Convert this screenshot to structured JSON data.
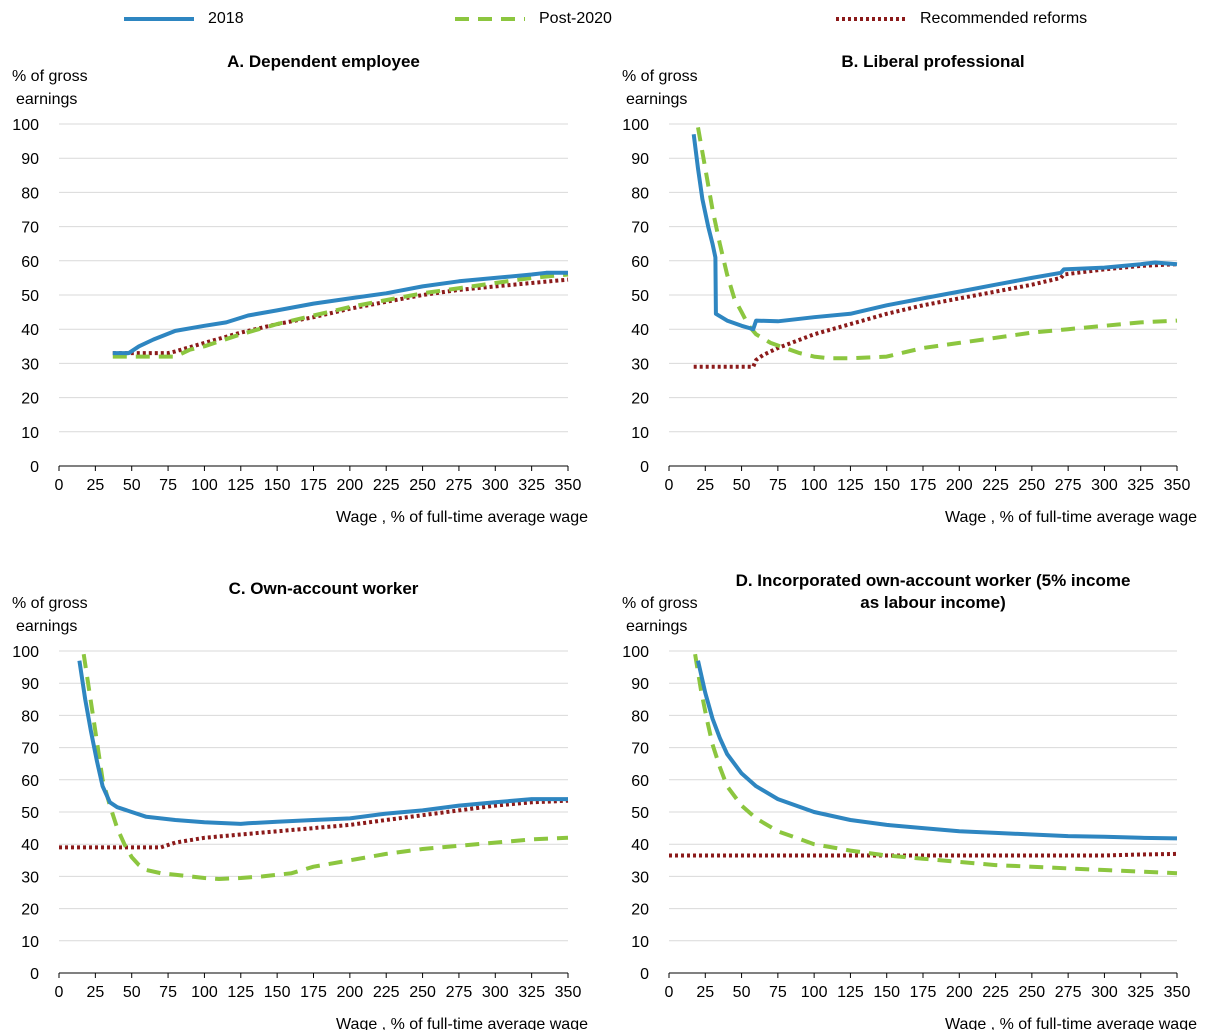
{
  "legend": [
    {
      "name": "2018",
      "color": "#2E86C1",
      "dash": "solid"
    },
    {
      "name": "Post-2020",
      "color": "#8CC63F",
      "dash": "dashed"
    },
    {
      "name": "Recommended reforms",
      "color": "#8B1A1A",
      "dash": "dotted"
    }
  ],
  "chart_data": [
    {
      "type": "line",
      "title": "A. Dependent employee",
      "ylabel": "% of gross earnings",
      "xlabel": "Wage , % of full-time average wage",
      "xlim": [
        0,
        350
      ],
      "ylim": [
        0,
        100
      ],
      "xticks": [
        0,
        25,
        50,
        75,
        100,
        125,
        150,
        175,
        200,
        225,
        250,
        275,
        300,
        325,
        350
      ],
      "yticks": [
        0,
        10,
        20,
        30,
        40,
        50,
        60,
        70,
        80,
        90,
        100
      ],
      "grid": "horizontal",
      "series": [
        {
          "name": "2018",
          "points": [
            [
              37,
              33
            ],
            [
              48,
              33
            ],
            [
              55,
              35
            ],
            [
              65,
              37
            ],
            [
              80,
              39.5
            ],
            [
              100,
              41
            ],
            [
              115,
              42
            ],
            [
              130,
              44
            ],
            [
              150,
              45.5
            ],
            [
              175,
              47.5
            ],
            [
              200,
              49
            ],
            [
              225,
              50.5
            ],
            [
              250,
              52.5
            ],
            [
              275,
              54
            ],
            [
              300,
              55
            ],
            [
              325,
              56
            ],
            [
              335,
              56.5
            ],
            [
              350,
              56.5
            ]
          ]
        },
        {
          "name": "Post-2020",
          "points": [
            [
              37,
              32
            ],
            [
              45,
              32
            ],
            [
              55,
              32
            ],
            [
              80,
              32
            ],
            [
              90,
              34
            ],
            [
              100,
              35
            ],
            [
              125,
              38.5
            ],
            [
              150,
              41.5
            ],
            [
              175,
              44
            ],
            [
              200,
              46.5
            ],
            [
              225,
              48.5
            ],
            [
              250,
              50.5
            ],
            [
              275,
              52
            ],
            [
              300,
              53.5
            ],
            [
              325,
              55
            ],
            [
              350,
              56
            ]
          ]
        },
        {
          "name": "Recommended reforms",
          "points": [
            [
              37,
              33
            ],
            [
              50,
              33
            ],
            [
              75,
              33
            ],
            [
              80,
              33.5
            ],
            [
              100,
              36
            ],
            [
              125,
              39
            ],
            [
              150,
              41.5
            ],
            [
              175,
              43.5
            ],
            [
              200,
              46
            ],
            [
              225,
              48
            ],
            [
              250,
              50
            ],
            [
              275,
              51.5
            ],
            [
              300,
              52.5
            ],
            [
              325,
              53.5
            ],
            [
              350,
              54.5
            ]
          ]
        }
      ]
    },
    {
      "type": "line",
      "title": "B. Liberal professional",
      "ylabel": "% of gross earnings",
      "xlabel": "Wage , % of full-time average wage",
      "xlim": [
        0,
        350
      ],
      "ylim": [
        0,
        100
      ],
      "xticks": [
        0,
        25,
        50,
        75,
        100,
        125,
        150,
        175,
        200,
        225,
        250,
        275,
        300,
        325,
        350
      ],
      "yticks": [
        0,
        10,
        20,
        30,
        40,
        50,
        60,
        70,
        80,
        90,
        100
      ],
      "grid": "horizontal",
      "series": [
        {
          "name": "2018",
          "points": [
            [
              17,
              97
            ],
            [
              20,
              87
            ],
            [
              23,
              78
            ],
            [
              27,
              70
            ],
            [
              30,
              65
            ],
            [
              32,
              61
            ],
            [
              32.3,
              44.5
            ],
            [
              40,
              42.5
            ],
            [
              50,
              41
            ],
            [
              58,
              40
            ],
            [
              60,
              42.5
            ],
            [
              75,
              42.3
            ],
            [
              100,
              43.5
            ],
            [
              125,
              44.5
            ],
            [
              150,
              47
            ],
            [
              175,
              49
            ],
            [
              200,
              51
            ],
            [
              225,
              53
            ],
            [
              250,
              55
            ],
            [
              270,
              56.5
            ],
            [
              272,
              57.5
            ],
            [
              300,
              58
            ],
            [
              325,
              59
            ],
            [
              335,
              59.5
            ],
            [
              350,
              59
            ]
          ]
        },
        {
          "name": "Post-2020",
          "points": [
            [
              20,
              99
            ],
            [
              25,
              87
            ],
            [
              30,
              75
            ],
            [
              35,
              65
            ],
            [
              40,
              56
            ],
            [
              45,
              49
            ],
            [
              50,
              45
            ],
            [
              55,
              41
            ],
            [
              60,
              38.5
            ],
            [
              70,
              36
            ],
            [
              80,
              34.5
            ],
            [
              90,
              33
            ],
            [
              100,
              32
            ],
            [
              110,
              31.5
            ],
            [
              125,
              31.5
            ],
            [
              150,
              32
            ],
            [
              160,
              33
            ],
            [
              175,
              34.5
            ],
            [
              200,
              36
            ],
            [
              225,
              37.5
            ],
            [
              250,
              39
            ],
            [
              275,
              40
            ],
            [
              300,
              41
            ],
            [
              325,
              42
            ],
            [
              350,
              42.5
            ]
          ]
        },
        {
          "name": "Recommended reforms",
          "points": [
            [
              17,
              29
            ],
            [
              30,
              29
            ],
            [
              45,
              29
            ],
            [
              55,
              29
            ],
            [
              58,
              29
            ],
            [
              60,
              31
            ],
            [
              65,
              32.5
            ],
            [
              75,
              34.5
            ],
            [
              100,
              38.5
            ],
            [
              125,
              41.5
            ],
            [
              150,
              44.5
            ],
            [
              175,
              47
            ],
            [
              200,
              49
            ],
            [
              225,
              51
            ],
            [
              250,
              53
            ],
            [
              270,
              55
            ],
            [
              272,
              56
            ],
            [
              300,
              57.5
            ],
            [
              325,
              58.5
            ],
            [
              350,
              59
            ]
          ]
        }
      ]
    },
    {
      "type": "line",
      "title": "C. Own-account worker",
      "ylabel": "% of gross earnings",
      "xlabel": "Wage , % of full-time average wage",
      "xlim": [
        0,
        350
      ],
      "ylim": [
        0,
        100
      ],
      "xticks": [
        0,
        25,
        50,
        75,
        100,
        125,
        150,
        175,
        200,
        225,
        250,
        275,
        300,
        325,
        350
      ],
      "yticks": [
        0,
        10,
        20,
        30,
        40,
        50,
        60,
        70,
        80,
        90,
        100
      ],
      "grid": "horizontal",
      "series": [
        {
          "name": "2018",
          "points": [
            [
              14,
              97
            ],
            [
              18,
              85
            ],
            [
              22,
              75
            ],
            [
              26,
              66
            ],
            [
              30,
              58
            ],
            [
              35,
              53
            ],
            [
              40,
              51.5
            ],
            [
              50,
              50
            ],
            [
              60,
              48.5
            ],
            [
              70,
              48
            ],
            [
              80,
              47.5
            ],
            [
              100,
              46.8
            ],
            [
              125,
              46.3
            ],
            [
              130,
              46.5
            ],
            [
              150,
              47
            ],
            [
              175,
              47.5
            ],
            [
              200,
              48
            ],
            [
              225,
              49.5
            ],
            [
              250,
              50.5
            ],
            [
              275,
              52
            ],
            [
              300,
              53
            ],
            [
              325,
              54
            ],
            [
              350,
              54
            ]
          ]
        },
        {
          "name": "Post-2020",
          "points": [
            [
              17,
              99
            ],
            [
              20,
              90
            ],
            [
              25,
              75
            ],
            [
              30,
              60
            ],
            [
              35,
              52
            ],
            [
              40,
              45
            ],
            [
              45,
              40
            ],
            [
              50,
              36
            ],
            [
              55,
              33.5
            ],
            [
              60,
              32
            ],
            [
              70,
              31
            ],
            [
              80,
              30.5
            ],
            [
              90,
              30
            ],
            [
              100,
              29.5
            ],
            [
              110,
              29.2
            ],
            [
              125,
              29.5
            ],
            [
              140,
              30
            ],
            [
              150,
              30.5
            ],
            [
              160,
              31
            ],
            [
              175,
              33
            ],
            [
              200,
              35
            ],
            [
              225,
              37
            ],
            [
              250,
              38.5
            ],
            [
              275,
              39.5
            ],
            [
              300,
              40.5
            ],
            [
              325,
              41.5
            ],
            [
              350,
              42
            ]
          ]
        },
        {
          "name": "Recommended reforms",
          "points": [
            [
              0,
              39
            ],
            [
              25,
              39
            ],
            [
              50,
              39
            ],
            [
              70,
              39
            ],
            [
              80,
              40.5
            ],
            [
              100,
              42
            ],
            [
              125,
              43
            ],
            [
              150,
              44
            ],
            [
              175,
              45
            ],
            [
              200,
              46
            ],
            [
              225,
              47.5
            ],
            [
              250,
              49
            ],
            [
              275,
              50.5
            ],
            [
              300,
              52
            ],
            [
              325,
              53
            ],
            [
              350,
              53.5
            ]
          ]
        }
      ]
    },
    {
      "type": "line",
      "title": "D. Incorporated own-account worker (5% income as labour income)",
      "title_lines": [
        "D. Incorporated own-account worker (5% income",
        "as labour income)"
      ],
      "ylabel": "% of gross earnings",
      "xlabel": "Wage , % of full-time average wage",
      "xlim": [
        0,
        350
      ],
      "ylim": [
        0,
        100
      ],
      "xticks": [
        0,
        25,
        50,
        75,
        100,
        125,
        150,
        175,
        200,
        225,
        250,
        275,
        300,
        325,
        350
      ],
      "yticks": [
        0,
        10,
        20,
        30,
        40,
        50,
        60,
        70,
        80,
        90,
        100
      ],
      "grid": "horizontal",
      "series": [
        {
          "name": "2018",
          "points": [
            [
              20,
              97
            ],
            [
              25,
              87
            ],
            [
              30,
              79
            ],
            [
              35,
              73
            ],
            [
              40,
              68
            ],
            [
              50,
              62
            ],
            [
              60,
              58
            ],
            [
              75,
              54
            ],
            [
              100,
              50
            ],
            [
              125,
              47.5
            ],
            [
              150,
              46
            ],
            [
              175,
              45
            ],
            [
              200,
              44
            ],
            [
              225,
              43.5
            ],
            [
              250,
              43
            ],
            [
              275,
              42.5
            ],
            [
              300,
              42.3
            ],
            [
              325,
              42
            ],
            [
              350,
              41.8
            ]
          ]
        },
        {
          "name": "Post-2020",
          "points": [
            [
              18,
              99
            ],
            [
              22,
              88
            ],
            [
              26,
              79
            ],
            [
              30,
              71
            ],
            [
              35,
              64
            ],
            [
              40,
              58
            ],
            [
              50,
              52
            ],
            [
              60,
              48
            ],
            [
              75,
              44
            ],
            [
              100,
              40
            ],
            [
              125,
              38
            ],
            [
              150,
              36.5
            ],
            [
              175,
              35.5
            ],
            [
              200,
              34.5
            ],
            [
              225,
              33.5
            ],
            [
              250,
              33
            ],
            [
              275,
              32.5
            ],
            [
              300,
              32
            ],
            [
              325,
              31.5
            ],
            [
              350,
              31
            ]
          ]
        },
        {
          "name": "Recommended reforms",
          "points": [
            [
              0,
              36.5
            ],
            [
              50,
              36.5
            ],
            [
              100,
              36.5
            ],
            [
              150,
              36.5
            ],
            [
              200,
              36.5
            ],
            [
              250,
              36.5
            ],
            [
              300,
              36.5
            ],
            [
              325,
              36.8
            ],
            [
              350,
              37
            ]
          ]
        }
      ]
    }
  ]
}
